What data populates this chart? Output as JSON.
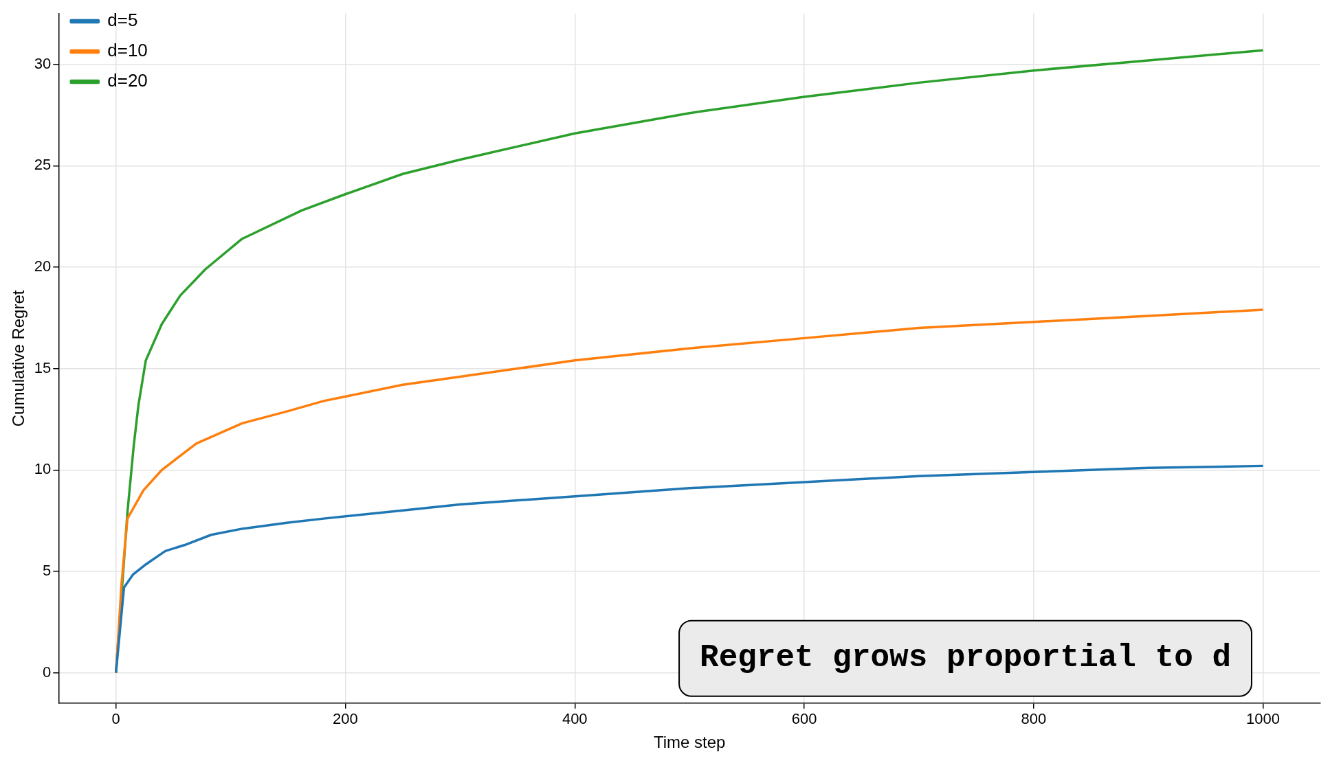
{
  "chart_data": {
    "type": "line",
    "xlabel": "Time step",
    "ylabel": "Cumulative Regret",
    "xlim": [
      -50,
      1050
    ],
    "ylim": [
      -1.5,
      32.5
    ],
    "xticks": [
      0,
      200,
      400,
      600,
      800,
      1000
    ],
    "yticks": [
      0,
      5,
      10,
      15,
      20,
      25,
      30
    ],
    "grid": true,
    "legend": "top left",
    "marker": "none",
    "line_style": "solid",
    "annotations": [
      "Regret grows proportial to d"
    ],
    "series": [
      {
        "name": "d=5",
        "color": "#1f77b4",
        "x": [
          0,
          7,
          15,
          25,
          43,
          60,
          83,
          110,
          150,
          181,
          250,
          300,
          400,
          500,
          600,
          700,
          800,
          900,
          1000
        ],
        "values": [
          0,
          4.2,
          4.85,
          5.3,
          6.0,
          6.3,
          6.8,
          7.1,
          7.4,
          7.6,
          8.0,
          8.3,
          8.7,
          9.1,
          9.4,
          9.7,
          9.9,
          10.1,
          10.2
        ]
      },
      {
        "name": "d=10",
        "color": "#ff7f0e",
        "x": [
          0,
          5,
          10,
          24,
          40,
          70,
          110,
          150,
          181,
          250,
          300,
          400,
          500,
          600,
          700,
          800,
          900,
          1000
        ],
        "values": [
          0,
          4.5,
          7.6,
          9.0,
          10.0,
          11.3,
          12.3,
          12.9,
          13.4,
          14.2,
          14.6,
          15.4,
          16.0,
          16.5,
          17.0,
          17.3,
          17.6,
          17.9
        ]
      },
      {
        "name": "d=20",
        "color": "#2ca02c",
        "x": [
          0,
          10,
          15.5,
          19.6,
          26,
          40,
          56,
          78,
          110,
          162,
          200,
          250,
          300,
          400,
          500,
          600,
          700,
          800,
          900,
          1000
        ],
        "values": [
          0,
          7.9,
          11.2,
          13.2,
          15.4,
          17.2,
          18.6,
          19.9,
          21.4,
          22.8,
          23.6,
          24.6,
          25.3,
          26.6,
          27.6,
          28.4,
          29.1,
          29.7,
          30.2,
          30.7
        ]
      }
    ]
  }
}
